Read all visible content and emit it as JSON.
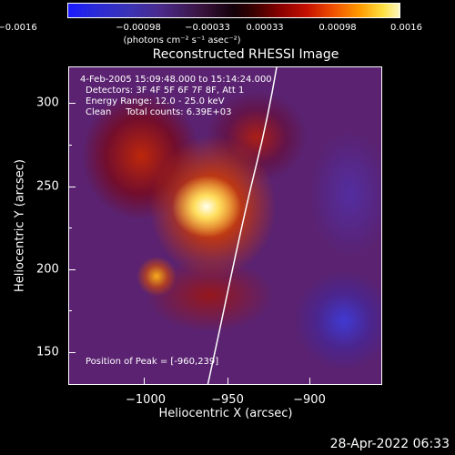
{
  "colorbar": {
    "ticks": [
      "−0.0016",
      "−0.00098",
      "−0.00033",
      "0.00033",
      "0.00098",
      "0.0016"
    ],
    "unit": "(photons cm⁻² s⁻¹ asec⁻²)"
  },
  "plot": {
    "title": "Reconstructed RHESSI Image",
    "annotations": {
      "time": "4-Feb-2005 15:09:48.000 to 15:14:24.000",
      "detectors": "Detectors: 3F 4F 5F 6F 7F 8F, Att 1",
      "energy": "Energy Range: 12.0 - 25.0 keV",
      "clean": "Clean     Total counts: 6.39E+03",
      "peak": "Position of Peak = [-960,239]"
    },
    "xlabel": "Heliocentric X (arcsec)",
    "ylabel": "Heliocentric Y (arcsec)",
    "xticks": [
      "−1000",
      "−950",
      "−900"
    ],
    "yticks": [
      "300",
      "250",
      "200",
      "150"
    ]
  },
  "timestamp": "28-Apr-2022 06:33"
}
